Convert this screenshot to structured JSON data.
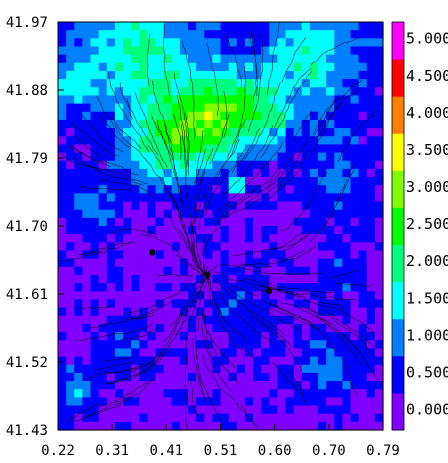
{
  "chart_data": {
    "type": "heatmap",
    "title": "",
    "xlabel": "",
    "ylabel": "",
    "xlim": [
      0.22,
      0.79
    ],
    "ylim": [
      41.43,
      41.97
    ],
    "x_ticks": [
      "0.22",
      "0.31",
      "0.41",
      "0.51",
      "0.60",
      "0.70",
      "0.79"
    ],
    "y_ticks": [
      "41.97",
      "41.88",
      "41.79",
      "41.70",
      "41.61",
      "41.52",
      "41.43"
    ],
    "colorbar": {
      "ticks": [
        "0.000",
        "0.500",
        "1.000",
        "1.500",
        "2.000",
        "2.500",
        "3.000",
        "3.500",
        "4.000",
        "4.500",
        "5.000"
      ],
      "range": [
        0,
        5.5
      ],
      "step": 0.5,
      "colors": [
        "#8000ff",
        "#0000ff",
        "#0080ff",
        "#00ffff",
        "#00ff80",
        "#00ff00",
        "#80ff00",
        "#ffff00",
        "#ff8000",
        "#ff0000",
        "#ff00ff"
      ]
    },
    "markers": [
      {
        "x": 0.385,
        "y": 41.665
      },
      {
        "x": 0.59,
        "y": 41.614
      }
    ],
    "overlay": "streamlines",
    "grid": false,
    "legend": "none"
  }
}
